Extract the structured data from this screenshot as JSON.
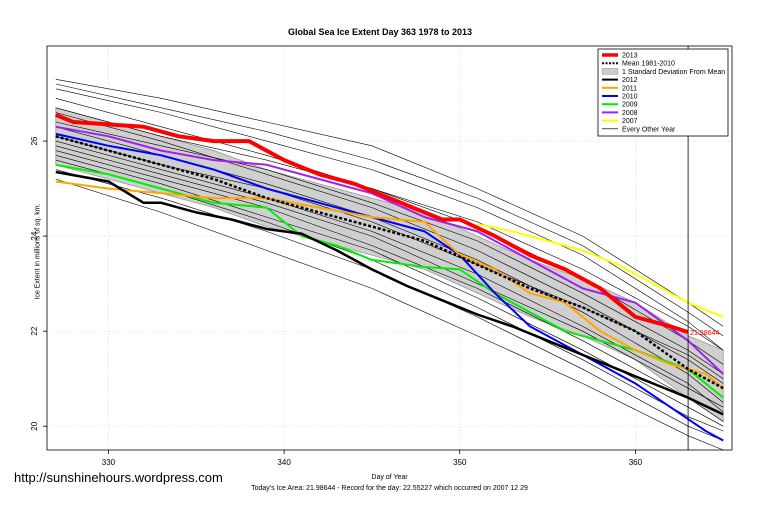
{
  "chart_data": {
    "type": "line",
    "title": "Global Sea Ice Extent Day 363 1978 to 2013",
    "xlabel": "Day of Year",
    "ylabel": "Ice Extent in millions of sq. km.",
    "footnote": "Today's Ice Area: 21.98644  - Record for the day: 22.55227 which occurred on 2007 12 29",
    "xlim": [
      326.5,
      365.5
    ],
    "ylim": [
      19.5,
      28.0
    ],
    "xticks": [
      330,
      340,
      350,
      360
    ],
    "yticks": [
      20,
      22,
      24,
      26
    ],
    "grid": true,
    "legend_position": "top-right",
    "current_day_marker": 363,
    "current_value_label": "21.98644",
    "legend": [
      {
        "label": "2013",
        "color": "#ff0000",
        "style": "solid-thick"
      },
      {
        "label": "Mean 1981-2010",
        "color": "#000000",
        "style": "dashed"
      },
      {
        "label": "1 Standard Deviation From Mean",
        "color": "#cccccc",
        "style": "band"
      },
      {
        "label": "2012",
        "color": "#000000",
        "style": "solid"
      },
      {
        "label": "2011",
        "color": "#ffa500",
        "style": "solid"
      },
      {
        "label": "2010",
        "color": "#0000ff",
        "style": "solid"
      },
      {
        "label": "2009",
        "color": "#00ee00",
        "style": "solid"
      },
      {
        "label": "2008",
        "color": "#a020f0",
        "style": "solid"
      },
      {
        "label": "2007",
        "color": "#ffff00",
        "style": "solid"
      },
      {
        "label": "Every Other Year",
        "color": "#000000",
        "style": "thin"
      }
    ],
    "mean": {
      "x": [
        327,
        330,
        333,
        336,
        339,
        342,
        345,
        348,
        351,
        354,
        357,
        360,
        363,
        365
      ],
      "y": [
        26.1,
        25.8,
        25.5,
        25.2,
        24.8,
        24.5,
        24.2,
        23.9,
        23.4,
        22.9,
        22.5,
        22.0,
        21.2,
        20.8
      ]
    },
    "std_band": {
      "x": [
        327,
        330,
        333,
        336,
        339,
        342,
        345,
        348,
        351,
        354,
        357,
        360,
        363,
        365
      ],
      "upper": [
        26.7,
        26.4,
        26.1,
        25.8,
        25.4,
        25.1,
        24.8,
        24.5,
        24.0,
        23.5,
        23.1,
        22.6,
        21.9,
        21.6
      ],
      "lower": [
        25.5,
        25.2,
        24.9,
        24.6,
        24.2,
        23.9,
        23.6,
        23.3,
        22.8,
        22.3,
        21.9,
        21.4,
        20.6,
        20.1
      ]
    },
    "series": [
      {
        "name": "2013",
        "color": "#ff0000",
        "width": 4,
        "x": [
          327,
          328,
          330,
          332,
          334,
          336,
          338,
          340,
          342,
          344,
          346,
          348,
          349,
          350,
          352,
          354,
          356,
          358,
          360,
          362,
          363
        ],
        "y": [
          26.55,
          26.4,
          26.35,
          26.3,
          26.1,
          26.0,
          26.0,
          25.6,
          25.3,
          25.1,
          24.8,
          24.5,
          24.35,
          24.35,
          24.0,
          23.6,
          23.3,
          22.9,
          22.3,
          22.1,
          21.98
        ]
      },
      {
        "name": "2012",
        "color": "#000000",
        "width": 2.5,
        "x": [
          327,
          330,
          332,
          333,
          335,
          337,
          339,
          341,
          343,
          345,
          347,
          349,
          351,
          353,
          355,
          357,
          359,
          361,
          363,
          365
        ],
        "y": [
          25.35,
          25.15,
          24.7,
          24.7,
          24.5,
          24.35,
          24.15,
          24.05,
          23.7,
          23.3,
          22.95,
          22.65,
          22.35,
          22.1,
          21.8,
          21.5,
          21.2,
          20.9,
          20.6,
          20.25
        ]
      },
      {
        "name": "2011",
        "color": "#ffa500",
        "width": 2,
        "x": [
          327,
          330,
          333,
          336,
          339,
          342,
          345,
          348,
          350,
          352,
          354,
          356,
          358,
          360,
          362,
          364,
          365
        ],
        "y": [
          25.15,
          25.0,
          24.9,
          24.8,
          24.8,
          24.6,
          24.4,
          24.3,
          23.6,
          23.3,
          22.8,
          22.6,
          22.0,
          21.6,
          21.3,
          21.1,
          20.8
        ]
      },
      {
        "name": "2010",
        "color": "#0000ff",
        "width": 2,
        "x": [
          327,
          330,
          333,
          336,
          339,
          342,
          345,
          348,
          350,
          352,
          354,
          356,
          358,
          360,
          362,
          364,
          365
        ],
        "y": [
          26.15,
          25.9,
          25.7,
          25.4,
          25.0,
          24.7,
          24.4,
          24.1,
          23.6,
          22.8,
          22.1,
          21.7,
          21.3,
          20.9,
          20.4,
          19.9,
          19.7
        ]
      },
      {
        "name": "2009",
        "color": "#00ee00",
        "width": 2,
        "x": [
          327,
          330,
          333,
          336,
          339,
          341,
          343,
          345,
          348,
          350,
          352,
          354,
          356,
          358,
          360,
          363,
          365
        ],
        "y": [
          25.5,
          25.3,
          25.0,
          24.7,
          24.6,
          24.0,
          23.8,
          23.5,
          23.35,
          23.3,
          22.8,
          22.4,
          22.0,
          21.8,
          21.6,
          21.2,
          20.6
        ]
      },
      {
        "name": "2008",
        "color": "#a020f0",
        "width": 2,
        "x": [
          327,
          330,
          333,
          336,
          339,
          342,
          345,
          348,
          351,
          354,
          357,
          360,
          363,
          365
        ],
        "y": [
          26.3,
          26.1,
          25.8,
          25.6,
          25.5,
          25.2,
          24.9,
          24.4,
          24.1,
          23.5,
          22.9,
          22.6,
          21.8,
          21.1
        ]
      },
      {
        "name": "2007",
        "color": "#ffff00",
        "width": 2,
        "x": [
          351,
          353,
          355,
          357,
          359,
          361,
          363,
          365
        ],
        "y": [
          24.25,
          24.1,
          23.9,
          23.7,
          23.4,
          23.0,
          22.6,
          22.3
        ]
      }
    ],
    "background_years": [
      {
        "x": [
          327,
          333,
          339,
          345,
          351,
          357,
          363,
          365
        ],
        "y": [
          27.3,
          26.9,
          26.4,
          25.9,
          25.0,
          24.0,
          22.6,
          22.1
        ]
      },
      {
        "x": [
          327,
          333,
          339,
          345,
          351,
          357,
          363,
          365
        ],
        "y": [
          27.1,
          26.6,
          26.0,
          25.4,
          24.6,
          23.6,
          22.2,
          21.6
        ]
      },
      {
        "x": [
          327,
          333,
          339,
          345,
          351,
          357,
          363,
          365
        ],
        "y": [
          26.9,
          26.3,
          25.7,
          25.0,
          24.2,
          23.1,
          21.8,
          21.3
        ]
      },
      {
        "x": [
          327,
          333,
          339,
          345,
          351,
          357,
          363,
          365
        ],
        "y": [
          26.6,
          26.0,
          25.3,
          24.6,
          23.7,
          22.6,
          21.4,
          20.9
        ]
      },
      {
        "x": [
          327,
          333,
          339,
          345,
          351,
          357,
          363,
          365
        ],
        "y": [
          26.3,
          25.7,
          25.1,
          24.4,
          23.5,
          22.4,
          21.1,
          20.5
        ]
      },
      {
        "x": [
          327,
          333,
          339,
          345,
          351,
          357,
          363,
          365
        ],
        "y": [
          26.0,
          25.4,
          24.8,
          24.1,
          23.2,
          22.1,
          20.9,
          20.3
        ]
      },
      {
        "x": [
          327,
          333,
          339,
          345,
          351,
          357,
          363,
          365
        ],
        "y": [
          25.8,
          25.2,
          24.6,
          23.8,
          22.9,
          21.8,
          20.6,
          20.1
        ]
      },
      {
        "x": [
          327,
          333,
          339,
          345,
          351,
          357,
          363,
          365
        ],
        "y": [
          25.6,
          25.0,
          24.3,
          23.5,
          22.5,
          21.4,
          20.2,
          19.9
        ]
      },
      {
        "x": [
          327,
          333,
          339,
          345,
          351,
          357,
          363,
          365
        ],
        "y": [
          25.4,
          24.8,
          24.1,
          23.3,
          22.3,
          21.2,
          20.0,
          19.7
        ]
      },
      {
        "x": [
          327,
          333,
          339,
          345,
          351,
          357,
          363,
          365
        ],
        "y": [
          25.2,
          24.5,
          23.7,
          22.9,
          21.9,
          20.9,
          19.8,
          19.5
        ]
      },
      {
        "x": [
          327,
          333,
          339,
          345,
          351,
          357,
          363,
          365
        ],
        "y": [
          26.7,
          26.1,
          25.6,
          25.0,
          24.3,
          23.3,
          22.1,
          21.6
        ]
      },
      {
        "x": [
          327,
          333,
          339,
          345,
          351,
          357,
          363,
          365
        ],
        "y": [
          26.1,
          25.5,
          25.0,
          24.3,
          23.4,
          22.5,
          21.5,
          21.0
        ]
      },
      {
        "x": [
          327,
          333,
          339,
          345,
          351,
          357,
          363,
          365
        ],
        "y": [
          25.9,
          25.3,
          24.7,
          24.0,
          23.0,
          22.0,
          20.8,
          20.4
        ]
      },
      {
        "x": [
          327,
          333,
          339,
          345,
          351,
          357,
          363,
          365
        ],
        "y": [
          27.2,
          26.7,
          26.2,
          25.6,
          24.8,
          23.8,
          22.4,
          21.9
        ]
      },
      {
        "x": [
          327,
          333,
          339,
          345,
          351,
          357,
          363,
          365
        ],
        "y": [
          26.4,
          25.9,
          25.4,
          24.7,
          23.9,
          22.8,
          21.6,
          21.1
        ]
      },
      {
        "x": [
          327,
          333,
          339,
          345,
          351,
          357,
          363,
          365
        ],
        "y": [
          25.7,
          25.1,
          24.4,
          23.7,
          22.7,
          21.6,
          20.4,
          20.0
        ]
      }
    ]
  },
  "watermark": "http://sunshinehours.wordpress.com"
}
